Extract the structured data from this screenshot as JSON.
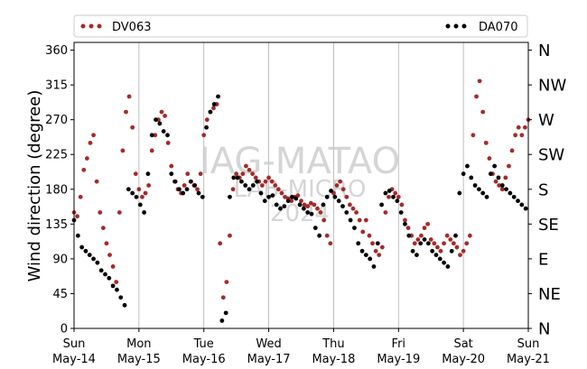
{
  "chart_data": {
    "type": "scatter",
    "ylabel": "Wind direction (degree)",
    "ylim": [
      0,
      370
    ],
    "yticks": [
      0,
      45,
      90,
      135,
      180,
      225,
      270,
      315,
      360
    ],
    "xlim": [
      0,
      7
    ],
    "x_unit": "days",
    "x_ticks": [
      {
        "day": "Sun",
        "date": "May-14"
      },
      {
        "day": "Mon",
        "date": "May-15"
      },
      {
        "day": "Tue",
        "date": "May-16"
      },
      {
        "day": "Wed",
        "date": "May-17"
      },
      {
        "day": "Thu",
        "date": "May-18"
      },
      {
        "day": "Fri",
        "date": "May-19"
      },
      {
        "day": "Sat",
        "date": "May-20"
      },
      {
        "day": "Sun",
        "date": "May-21"
      }
    ],
    "compass_labels": [
      {
        "deg": 0,
        "label": "N"
      },
      {
        "deg": 45,
        "label": "NE"
      },
      {
        "deg": 90,
        "label": "E"
      },
      {
        "deg": 135,
        "label": "SE"
      },
      {
        "deg": 180,
        "label": "S"
      },
      {
        "deg": 225,
        "label": "SW"
      },
      {
        "deg": 270,
        "label": "W"
      },
      {
        "deg": 315,
        "label": "NW"
      },
      {
        "deg": 360,
        "label": "N"
      }
    ],
    "grid": "vertical",
    "legend_placement": "top",
    "watermark": [
      "IAG-MATAO",
      "LAB-MICRO",
      "2024"
    ],
    "series": [
      {
        "name": "DV063",
        "color": "#a52a2a",
        "x": [
          0.0,
          0.05,
          0.1,
          0.15,
          0.2,
          0.25,
          0.3,
          0.35,
          0.4,
          0.45,
          0.5,
          0.55,
          0.6,
          0.65,
          0.7,
          0.75,
          0.8,
          0.85,
          0.9,
          0.95,
          1.0,
          1.05,
          1.1,
          1.15,
          1.2,
          1.25,
          1.3,
          1.35,
          1.4,
          1.45,
          1.5,
          1.55,
          1.6,
          1.65,
          1.7,
          1.75,
          1.8,
          1.85,
          1.9,
          1.95,
          2.0,
          2.05,
          2.1,
          2.15,
          2.2,
          2.25,
          2.3,
          2.35,
          2.4,
          2.45,
          2.5,
          2.55,
          2.6,
          2.65,
          2.7,
          2.75,
          2.8,
          2.85,
          2.9,
          2.95,
          3.0,
          3.05,
          3.1,
          3.15,
          3.2,
          3.25,
          3.3,
          3.35,
          3.4,
          3.45,
          3.5,
          3.55,
          3.6,
          3.65,
          3.7,
          3.75,
          3.8,
          3.85,
          3.9,
          3.95,
          4.0,
          4.05,
          4.1,
          4.15,
          4.2,
          4.25,
          4.3,
          4.35,
          4.4,
          4.45,
          4.5,
          4.55,
          4.6,
          4.65,
          4.7,
          4.75,
          4.8,
          4.85,
          4.9,
          4.95,
          5.0,
          5.05,
          5.1,
          5.15,
          5.2,
          5.25,
          5.3,
          5.35,
          5.4,
          5.45,
          5.5,
          5.55,
          5.6,
          5.65,
          5.7,
          5.75,
          5.8,
          5.85,
          5.9,
          5.95,
          6.0,
          6.05,
          6.1,
          6.15,
          6.2,
          6.25,
          6.3,
          6.35,
          6.4,
          6.45,
          6.5,
          6.55,
          6.6,
          6.65,
          6.7,
          6.75,
          6.8,
          6.85,
          6.9,
          6.95,
          7.0
        ],
        "y": [
          150,
          145,
          170,
          205,
          220,
          240,
          250,
          190,
          150,
          130,
          110,
          95,
          80,
          60,
          150,
          230,
          280,
          300,
          260,
          200,
          180,
          170,
          175,
          185,
          230,
          250,
          270,
          280,
          275,
          240,
          210,
          190,
          180,
          175,
          185,
          200,
          190,
          185,
          180,
          200,
          250,
          270,
          280,
          285,
          290,
          110,
          40,
          60,
          120,
          180,
          200,
          195,
          200,
          210,
          205,
          200,
          195,
          190,
          185,
          190,
          195,
          190,
          185,
          180,
          175,
          170,
          168,
          165,
          170,
          172,
          165,
          160,
          158,
          162,
          160,
          155,
          150,
          140,
          120,
          110,
          175,
          185,
          190,
          180,
          170,
          160,
          155,
          150,
          140,
          125,
          140,
          120,
          110,
          100,
          95,
          105,
          150,
          170,
          180,
          175,
          170,
          160,
          140,
          130,
          120,
          110,
          115,
          120,
          130,
          135,
          115,
          110,
          105,
          100,
          110,
          120,
          115,
          110,
          105,
          95,
          100,
          110,
          120,
          250,
          300,
          320,
          280,
          240,
          220,
          200,
          190,
          185,
          180,
          195,
          210,
          230,
          250,
          260,
          250,
          260,
          270
        ]
      },
      {
        "name": "DA070",
        "color": "#000000",
        "x": [
          0.0,
          0.06,
          0.12,
          0.18,
          0.24,
          0.3,
          0.36,
          0.42,
          0.48,
          0.54,
          0.6,
          0.66,
          0.72,
          0.78,
          0.84,
          0.9,
          0.96,
          1.02,
          1.08,
          1.14,
          1.2,
          1.26,
          1.32,
          1.38,
          1.44,
          1.5,
          1.56,
          1.62,
          1.68,
          1.74,
          1.8,
          1.86,
          1.92,
          1.98,
          2.04,
          2.1,
          2.16,
          2.22,
          2.28,
          2.34,
          2.4,
          2.46,
          2.52,
          2.58,
          2.64,
          2.7,
          2.76,
          2.82,
          2.88,
          2.94,
          3.0,
          3.06,
          3.12,
          3.18,
          3.24,
          3.3,
          3.36,
          3.42,
          3.48,
          3.54,
          3.6,
          3.66,
          3.72,
          3.78,
          3.84,
          3.9,
          3.96,
          4.02,
          4.08,
          4.14,
          4.2,
          4.26,
          4.32,
          4.38,
          4.44,
          4.5,
          4.56,
          4.62,
          4.68,
          4.74,
          4.8,
          4.86,
          4.92,
          4.98,
          5.04,
          5.1,
          5.16,
          5.22,
          5.28,
          5.34,
          5.4,
          5.46,
          5.52,
          5.58,
          5.64,
          5.7,
          5.76,
          5.82,
          5.88,
          5.94,
          6.0,
          6.06,
          6.12,
          6.18,
          6.24,
          6.3,
          6.36,
          6.42,
          6.48,
          6.54,
          6.6,
          6.66,
          6.72,
          6.78,
          6.84,
          6.9,
          6.96
        ],
        "y": [
          140,
          120,
          105,
          100,
          95,
          90,
          85,
          75,
          70,
          65,
          55,
          50,
          40,
          30,
          180,
          175,
          170,
          160,
          150,
          200,
          250,
          270,
          265,
          255,
          250,
          200,
          190,
          180,
          175,
          180,
          190,
          185,
          175,
          170,
          260,
          280,
          290,
          300,
          10,
          20,
          170,
          195,
          195,
          190,
          185,
          180,
          185,
          190,
          175,
          165,
          170,
          172,
          160,
          155,
          158,
          165,
          170,
          168,
          160,
          155,
          150,
          148,
          130,
          120,
          160,
          170,
          178,
          170,
          165,
          158,
          150,
          140,
          130,
          110,
          100,
          95,
          90,
          80,
          110,
          160,
          175,
          178,
          170,
          165,
          150,
          135,
          120,
          100,
          95,
          110,
          115,
          110,
          100,
          95,
          90,
          85,
          80,
          100,
          120,
          175,
          200,
          210,
          195,
          185,
          180,
          175,
          170,
          200,
          210,
          195,
          185,
          180,
          175,
          170,
          165,
          160,
          155
        ]
      }
    ]
  }
}
